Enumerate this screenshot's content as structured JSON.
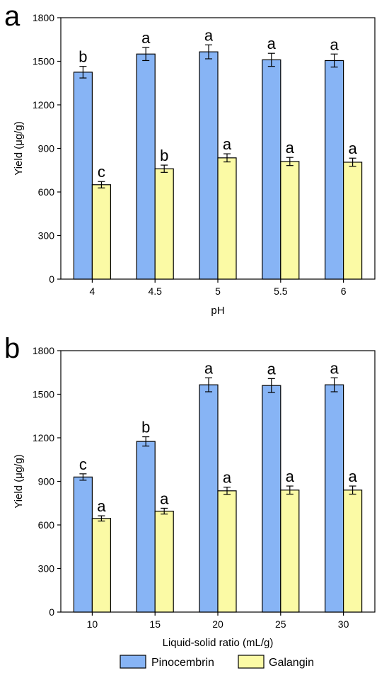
{
  "legend": {
    "entries": [
      {
        "name": "Pinocembrin",
        "color": "#87b4f5"
      },
      {
        "name": "Galangin",
        "color": "#fbfaa5"
      }
    ]
  },
  "chart_data": [
    {
      "type": "bar",
      "panel": "a",
      "xlabel": "pH",
      "ylabel": "Yield (μg/g)",
      "categories": [
        "4",
        "4.5",
        "5",
        "5.5",
        "6"
      ],
      "ylim": [
        0,
        1800
      ],
      "yticks": [
        "0",
        "300",
        "600",
        "900",
        "1200",
        "1500",
        "1800"
      ],
      "series": [
        {
          "name": "Pinocembrin",
          "color": "#87b4f5",
          "values": [
            1425,
            1550,
            1565,
            1510,
            1505
          ],
          "errors": [
            40,
            45,
            48,
            45,
            45
          ],
          "labels": [
            "b",
            "a",
            "a",
            "a",
            "a"
          ]
        },
        {
          "name": "Galangin",
          "color": "#fbfaa5",
          "values": [
            650,
            760,
            835,
            810,
            805
          ],
          "errors": [
            22,
            25,
            28,
            28,
            28
          ],
          "labels": [
            "c",
            "b",
            "a",
            "a",
            "a"
          ]
        }
      ]
    },
    {
      "type": "bar",
      "panel": "b",
      "xlabel": "Liquid-solid ratio (mL/g)",
      "ylabel": "Yield (μg/g)",
      "categories": [
        "10",
        "15",
        "20",
        "25",
        "30"
      ],
      "ylim": [
        0,
        1800
      ],
      "yticks": [
        "0",
        "300",
        "600",
        "900",
        "1200",
        "1500",
        "1800"
      ],
      "series": [
        {
          "name": "Pinocembrin",
          "color": "#87b4f5",
          "values": [
            930,
            1175,
            1565,
            1560,
            1565
          ],
          "errors": [
            22,
            32,
            48,
            48,
            48
          ],
          "labels": [
            "c",
            "b",
            "a",
            "a",
            "a"
          ]
        },
        {
          "name": "Galangin",
          "color": "#fbfaa5",
          "values": [
            645,
            695,
            835,
            840,
            840
          ],
          "errors": [
            18,
            20,
            25,
            28,
            28
          ],
          "labels": [
            "a",
            "a",
            "a",
            "a",
            "a"
          ]
        }
      ]
    }
  ]
}
